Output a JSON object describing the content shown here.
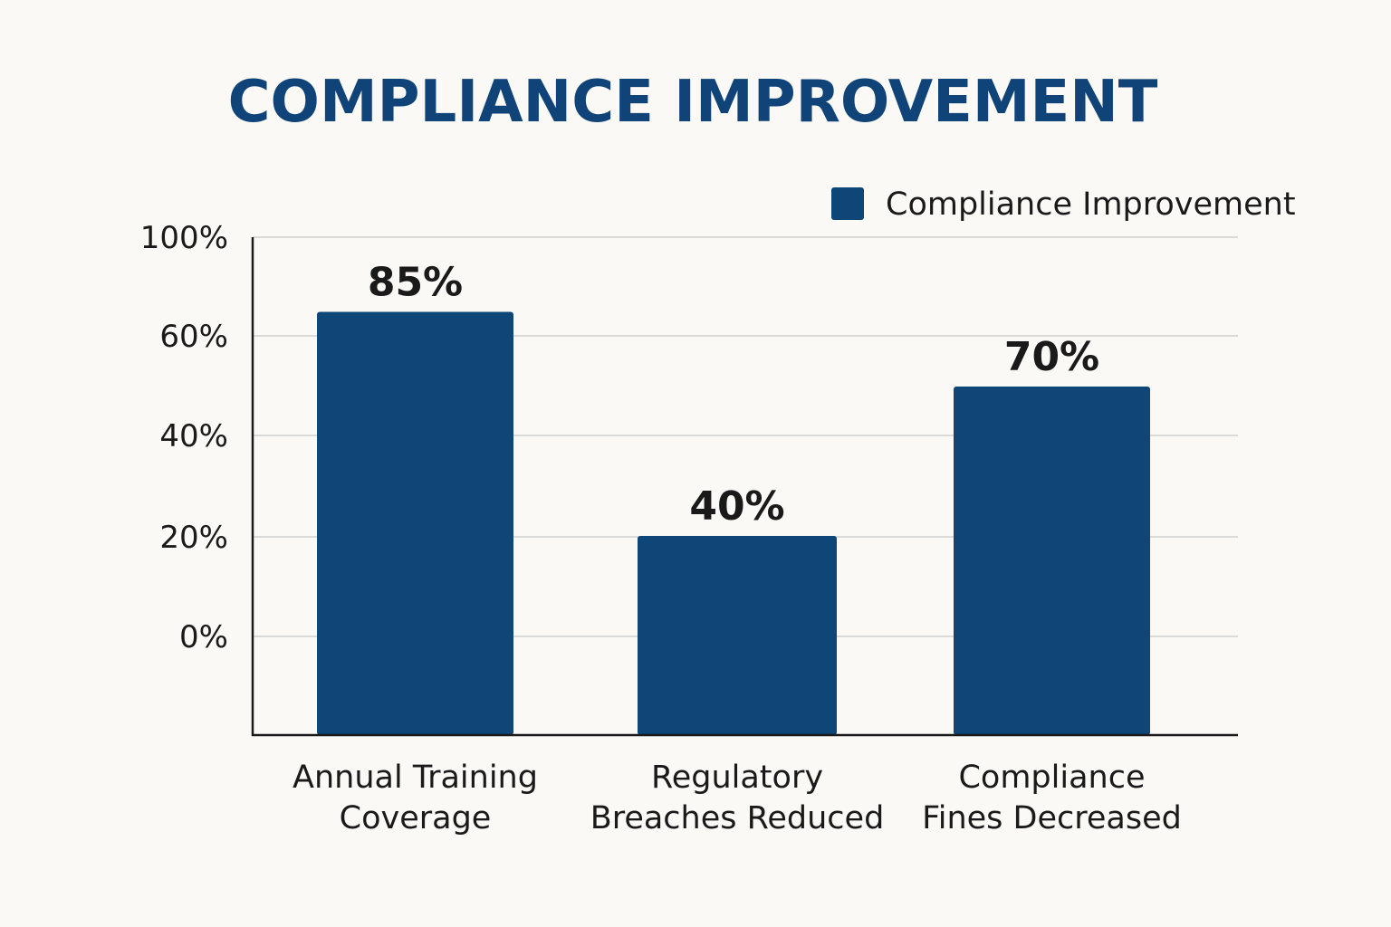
{
  "chart_data": {
    "type": "bar",
    "title": "COMPLIANCE IMPROVEMENT",
    "categories": [
      [
        "Annual Training",
        "Coverage"
      ],
      [
        "Regulatory",
        "Breaches Reduced"
      ],
      [
        "Compliance",
        "Fines Decreased"
      ]
    ],
    "series": [
      {
        "name": "Compliance Improvement",
        "values": [
          85,
          40,
          70
        ]
      }
    ],
    "data_labels": [
      "85%",
      "40%",
      "70%"
    ],
    "y_tick_labels": [
      "100%",
      "60%",
      "40%",
      "20%",
      "0%"
    ],
    "ylim": [
      0,
      100
    ],
    "xlabel": "",
    "ylabel": "",
    "grid": true,
    "legend_position": "top-right",
    "colors": {
      "bar": "#0d4677",
      "title": "#104479",
      "grid": "#cfcfcf",
      "axis": "#1a1a1a",
      "text": "#1a1a1a"
    }
  }
}
